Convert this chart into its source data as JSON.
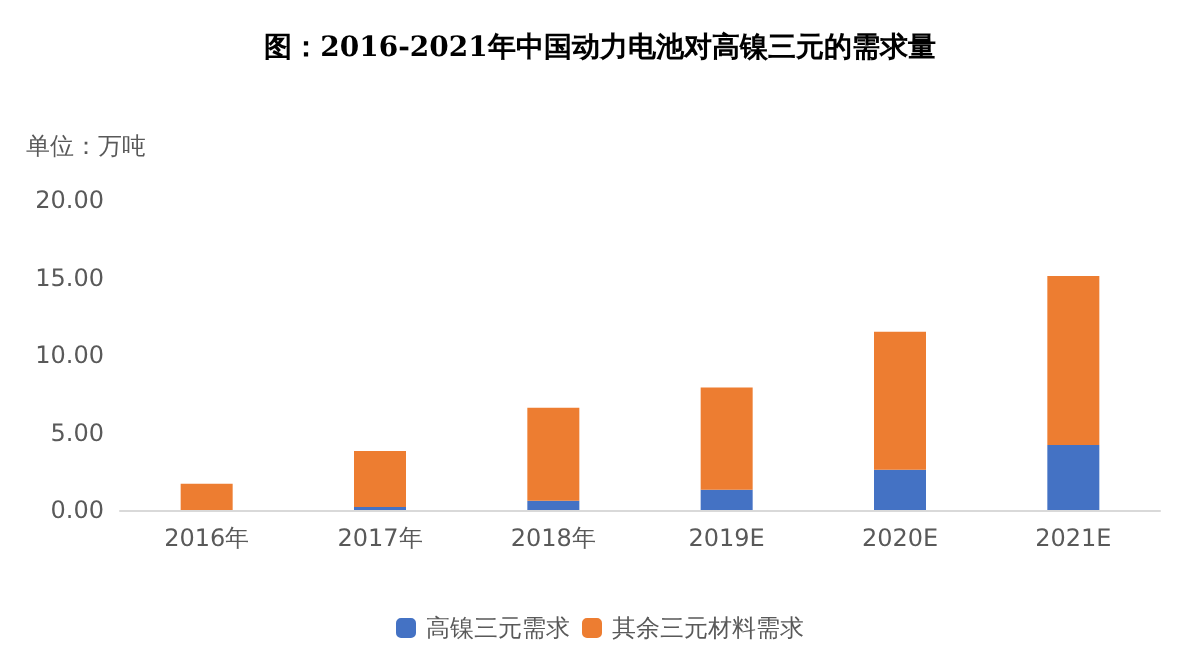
{
  "chart_data": {
    "type": "bar",
    "title": "图：2016-2021年中国动力电池对高镍三元的需求量",
    "ylabel": "单位：万吨",
    "categories": [
      "2016年",
      "2017年",
      "2018年",
      "2019E",
      "2020E",
      "2021E"
    ],
    "stacked": true,
    "series": [
      {
        "name": "高镍三元需求",
        "color": "#4472c4",
        "values": [
          0,
          0.2,
          0.6,
          1.3,
          2.6,
          4.2
        ]
      },
      {
        "name": "其余三元材料需求",
        "color": "#ed7d31",
        "values": [
          1.7,
          3.6,
          6.0,
          6.6,
          8.9,
          10.9
        ]
      }
    ],
    "ylim": [
      0,
      20
    ],
    "yticks": [
      {
        "value": 0,
        "label": "0.00"
      },
      {
        "value": 5,
        "label": "5.00"
      },
      {
        "value": 10,
        "label": "10.00"
      },
      {
        "value": 15,
        "label": "15.00"
      },
      {
        "value": 20,
        "label": "20.00"
      }
    ],
    "grid": false,
    "legend": "bottom"
  }
}
